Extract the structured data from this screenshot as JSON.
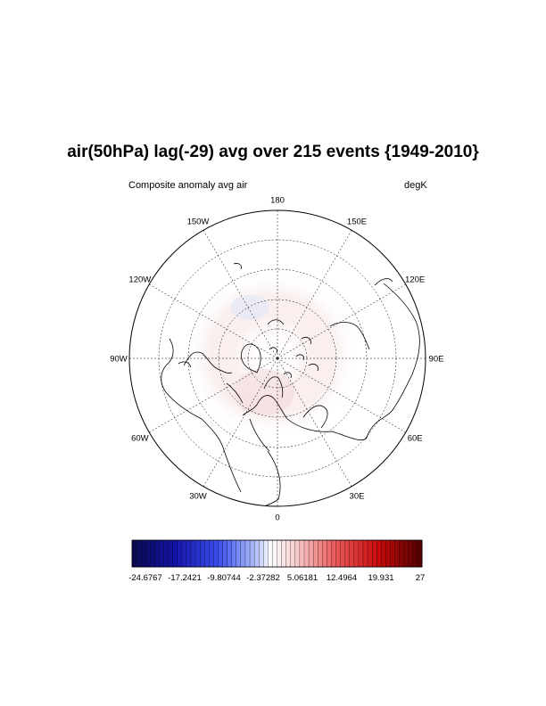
{
  "title": "air(50hPa) lag(-29) avg over 215 events {1949-2010}",
  "subtitle_left": "Composite anomaly avg air",
  "subtitle_right": "degK",
  "map": {
    "projection": "north-polar-stereographic",
    "center": "North Pole",
    "longitude_labels": [
      {
        "lon": 180,
        "text": "180"
      },
      {
        "lon": 150,
        "text": "150E"
      },
      {
        "lon": 120,
        "text": "120E"
      },
      {
        "lon": 90,
        "text": "90E"
      },
      {
        "lon": 60,
        "text": "60E"
      },
      {
        "lon": 30,
        "text": "30E"
      },
      {
        "lon": 0,
        "text": "0"
      },
      {
        "lon": -30,
        "text": "30W"
      },
      {
        "lon": -60,
        "text": "60W"
      },
      {
        "lon": -90,
        "text": "90W"
      },
      {
        "lon": -120,
        "text": "120W"
      },
      {
        "lon": -150,
        "text": "150W"
      }
    ],
    "graticule": "dashed"
  },
  "colorbar": {
    "min": -24.6767,
    "max": 27,
    "tick_labels": [
      "-24.6767",
      "-17.2421",
      "-9.80744",
      "-2.37282",
      "5.06181",
      "12.4964",
      "19.931",
      "27"
    ],
    "colors": {
      "low": "#0a0a6e",
      "mid_low": "#2a3cff",
      "white": "#ffffff",
      "mid_high": "#e01010",
      "high": "#5a0000"
    }
  }
}
